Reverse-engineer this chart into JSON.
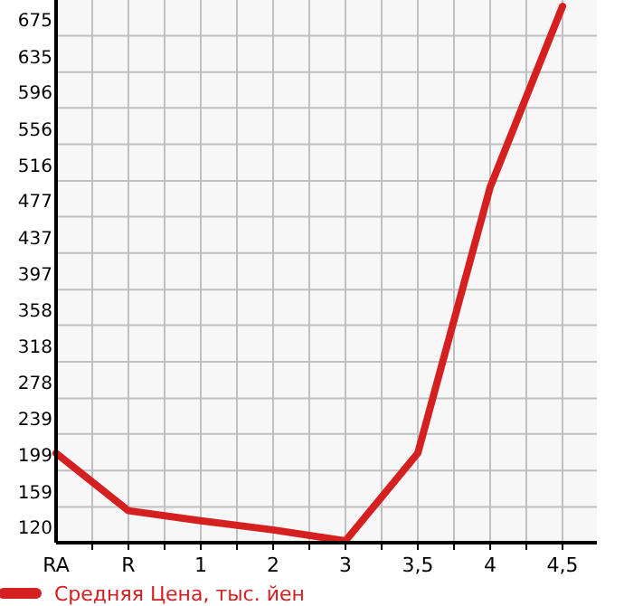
{
  "chart_data": {
    "type": "line",
    "categories": [
      "RA",
      "R",
      "1",
      "2",
      "3",
      "3,5",
      "4",
      "4,5"
    ],
    "series": [
      {
        "name": "Средняя Цена, тыс. йен",
        "color": "#d42020",
        "values": [
          218,
          155,
          144,
          134,
          122,
          218,
          509,
          707
        ]
      }
    ],
    "ylim": [
      120,
      714
    ],
    "yticks": [
      120,
      159,
      199,
      239,
      278,
      318,
      358,
      397,
      437,
      477,
      516,
      556,
      596,
      635,
      675
    ],
    "grid": true,
    "legend": "bottom",
    "marker": "none",
    "line_style": "solid"
  }
}
